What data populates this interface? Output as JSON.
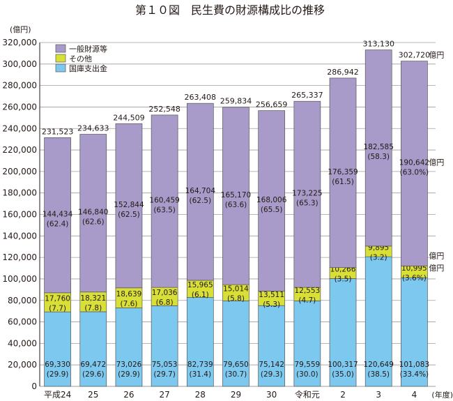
{
  "chart_data": {
    "type": "bar",
    "stacked": true,
    "title": "第１０図　民生費の財源構成比の推移",
    "ylabel": "(億円)",
    "xlabel": "(年度)",
    "ylim": [
      0,
      320000
    ],
    "yticks": [
      0,
      20000,
      40000,
      60000,
      80000,
      100000,
      120000,
      140000,
      160000,
      180000,
      200000,
      220000,
      240000,
      260000,
      280000,
      300000,
      320000
    ],
    "ytick_labels": [
      "0",
      "20,000",
      "40,000",
      "60,000",
      "80,000",
      "100,000",
      "120,000",
      "140,000",
      "160,000",
      "180,000",
      "200,000",
      "220,000",
      "240,000",
      "260,000",
      "280,000",
      "300,000",
      "320,000"
    ],
    "categories": [
      "平成24",
      "25",
      "26",
      "27",
      "28",
      "29",
      "30",
      "令和元",
      "2",
      "3",
      "4"
    ],
    "grid": true,
    "legend_position": "top-left",
    "colors": {
      "general": "#a89bc9",
      "other": "#d8e038",
      "national": "#7cc8ee",
      "grid": "#9e9e9e"
    },
    "series": [
      {
        "name": "国庫支出金",
        "values": [
          69330,
          69472,
          73026,
          75053,
          82739,
          79650,
          75142,
          79559,
          100317,
          120649,
          101083
        ],
        "value_labels": [
          "69,330",
          "69,472",
          "73,026",
          "75,053",
          "82,739",
          "79,650",
          "75,142",
          "79,559",
          "100,317",
          "120,649",
          "101,083"
        ],
        "pct_labels": [
          "(29.9)",
          "(29.6)",
          "(29.9)",
          "(29.7)",
          "(31.4)",
          "(30.7)",
          "(29.3)",
          "(30.0)",
          "(35.0)",
          "(38.5)",
          "(33.4%)"
        ]
      },
      {
        "name": "その他",
        "values": [
          17760,
          18321,
          18639,
          17036,
          15965,
          15014,
          13511,
          12553,
          10266,
          9895,
          10995
        ],
        "value_labels": [
          "17,760",
          "18,321",
          "18,639",
          "17,036",
          "15,965",
          "15,014",
          "13,511",
          "12,553",
          "10,266",
          "9,895",
          "10,995"
        ],
        "pct_labels": [
          "(7.7)",
          "(7.8)",
          "(7.6)",
          "(6.8)",
          "(6.1)",
          "(5.8)",
          "(5.3)",
          "(4.7)",
          "(3.5)",
          "(3.2)",
          "(3.6%)"
        ]
      },
      {
        "name": "一般財源等",
        "values": [
          144434,
          146840,
          152844,
          160459,
          164704,
          165170,
          168006,
          173225,
          176359,
          182585,
          190642
        ],
        "value_labels": [
          "144,434",
          "146,840",
          "152,844",
          "160,459",
          "164,704",
          "165,170",
          "168,006",
          "173,225",
          "176,359",
          "182,585",
          "190,642"
        ],
        "pct_labels": [
          "(62.4)",
          "(62.6)",
          "(62.5)",
          "(63.5)",
          "(62.5)",
          "(63.6)",
          "(65.5)",
          "(65.3)",
          "(61.5)",
          "(58.3)",
          "(63.0%)"
        ]
      }
    ],
    "totals": [
      231523,
      234633,
      244509,
      252548,
      263408,
      259834,
      256659,
      265337,
      286942,
      313130,
      302720
    ],
    "total_labels": [
      "231,523",
      "234,633",
      "244,509",
      "252,548",
      "263,408",
      "259,834",
      "256,659",
      "265,337",
      "286,942",
      "313,130",
      "302,720"
    ],
    "unit_suffix": "億円"
  }
}
